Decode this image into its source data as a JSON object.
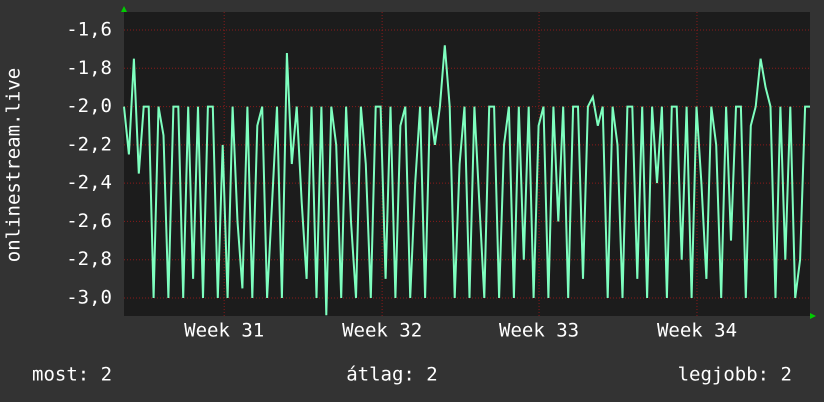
{
  "chart_data": {
    "type": "line",
    "y_label": "onlinestream.live",
    "color": "#7effbf",
    "grid": true,
    "xlim": [
      0,
      139
    ],
    "xticks": [
      {
        "value": 20.3,
        "label": "Week 31"
      },
      {
        "value": 52.3,
        "label": "Week 32"
      },
      {
        "value": 84.1,
        "label": "Week 33"
      },
      {
        "value": 116.1,
        "label": "Week 34"
      }
    ],
    "ylim": [
      -3.094,
      -1.506
    ],
    "yticks": [
      {
        "value": -1.6,
        "label": "-1,6"
      },
      {
        "value": -1.8,
        "label": "-1,8"
      },
      {
        "value": -2.0,
        "label": "-2,0"
      },
      {
        "value": -2.2,
        "label": "-2,2"
      },
      {
        "value": -2.4,
        "label": "-2,4"
      },
      {
        "value": -2.6,
        "label": "-2,6"
      },
      {
        "value": -2.8,
        "label": "-2,8"
      },
      {
        "value": -3.0,
        "label": "-3,0"
      }
    ],
    "values": [
      -2.0,
      -2.25,
      -1.75,
      -2.35,
      -2.0,
      -2.0,
      -3.0,
      -2.0,
      -2.15,
      -3.0,
      -2.0,
      -2.0,
      -3.0,
      -2.0,
      -2.9,
      -2.0,
      -3.0,
      -2.0,
      -2.0,
      -3.0,
      -2.2,
      -3.0,
      -2.0,
      -2.6,
      -2.95,
      -2.0,
      -3.0,
      -2.1,
      -2.0,
      -3.0,
      -2.5,
      -2.0,
      -3.0,
      -1.72,
      -2.3,
      -2.0,
      -2.5,
      -2.9,
      -2.0,
      -3.0,
      -2.0,
      -3.09,
      -2.0,
      -2.2,
      -3.0,
      -2.0,
      -2.6,
      -3.0,
      -2.0,
      -2.3,
      -3.0,
      -2.0,
      -2.0,
      -2.9,
      -2.0,
      -3.0,
      -2.1,
      -2.0,
      -3.0,
      -2.4,
      -2.0,
      -3.0,
      -2.0,
      -2.2,
      -2.0,
      -1.68,
      -2.0,
      -3.0,
      -2.3,
      -2.0,
      -3.0,
      -2.0,
      -2.5,
      -3.0,
      -2.0,
      -2.0,
      -3.0,
      -2.2,
      -2.0,
      -3.0,
      -2.0,
      -2.8,
      -2.0,
      -3.0,
      -2.1,
      -2.0,
      -3.0,
      -2.0,
      -2.6,
      -2.0,
      -3.0,
      -2.0,
      -2.0,
      -2.9,
      -2.0,
      -1.95,
      -2.1,
      -2.0,
      -3.0,
      -2.0,
      -2.2,
      -3.0,
      -2.0,
      -2.0,
      -2.9,
      -2.0,
      -3.0,
      -2.0,
      -2.4,
      -2.0,
      -3.0,
      -2.0,
      -2.0,
      -2.8,
      -2.0,
      -3.0,
      -2.0,
      -2.4,
      -2.9,
      -2.0,
      -2.2,
      -3.0,
      -2.0,
      -2.7,
      -2.0,
      -2.0,
      -3.0,
      -2.1,
      -2.0,
      -1.75,
      -1.9,
      -2.0,
      -3.0,
      -2.0,
      -2.8,
      -2.0,
      -3.0,
      -2.8,
      -2.0,
      -2.0
    ],
    "stats": [
      "most: 2",
      "átlag: 2",
      "legjobb: 2"
    ]
  }
}
